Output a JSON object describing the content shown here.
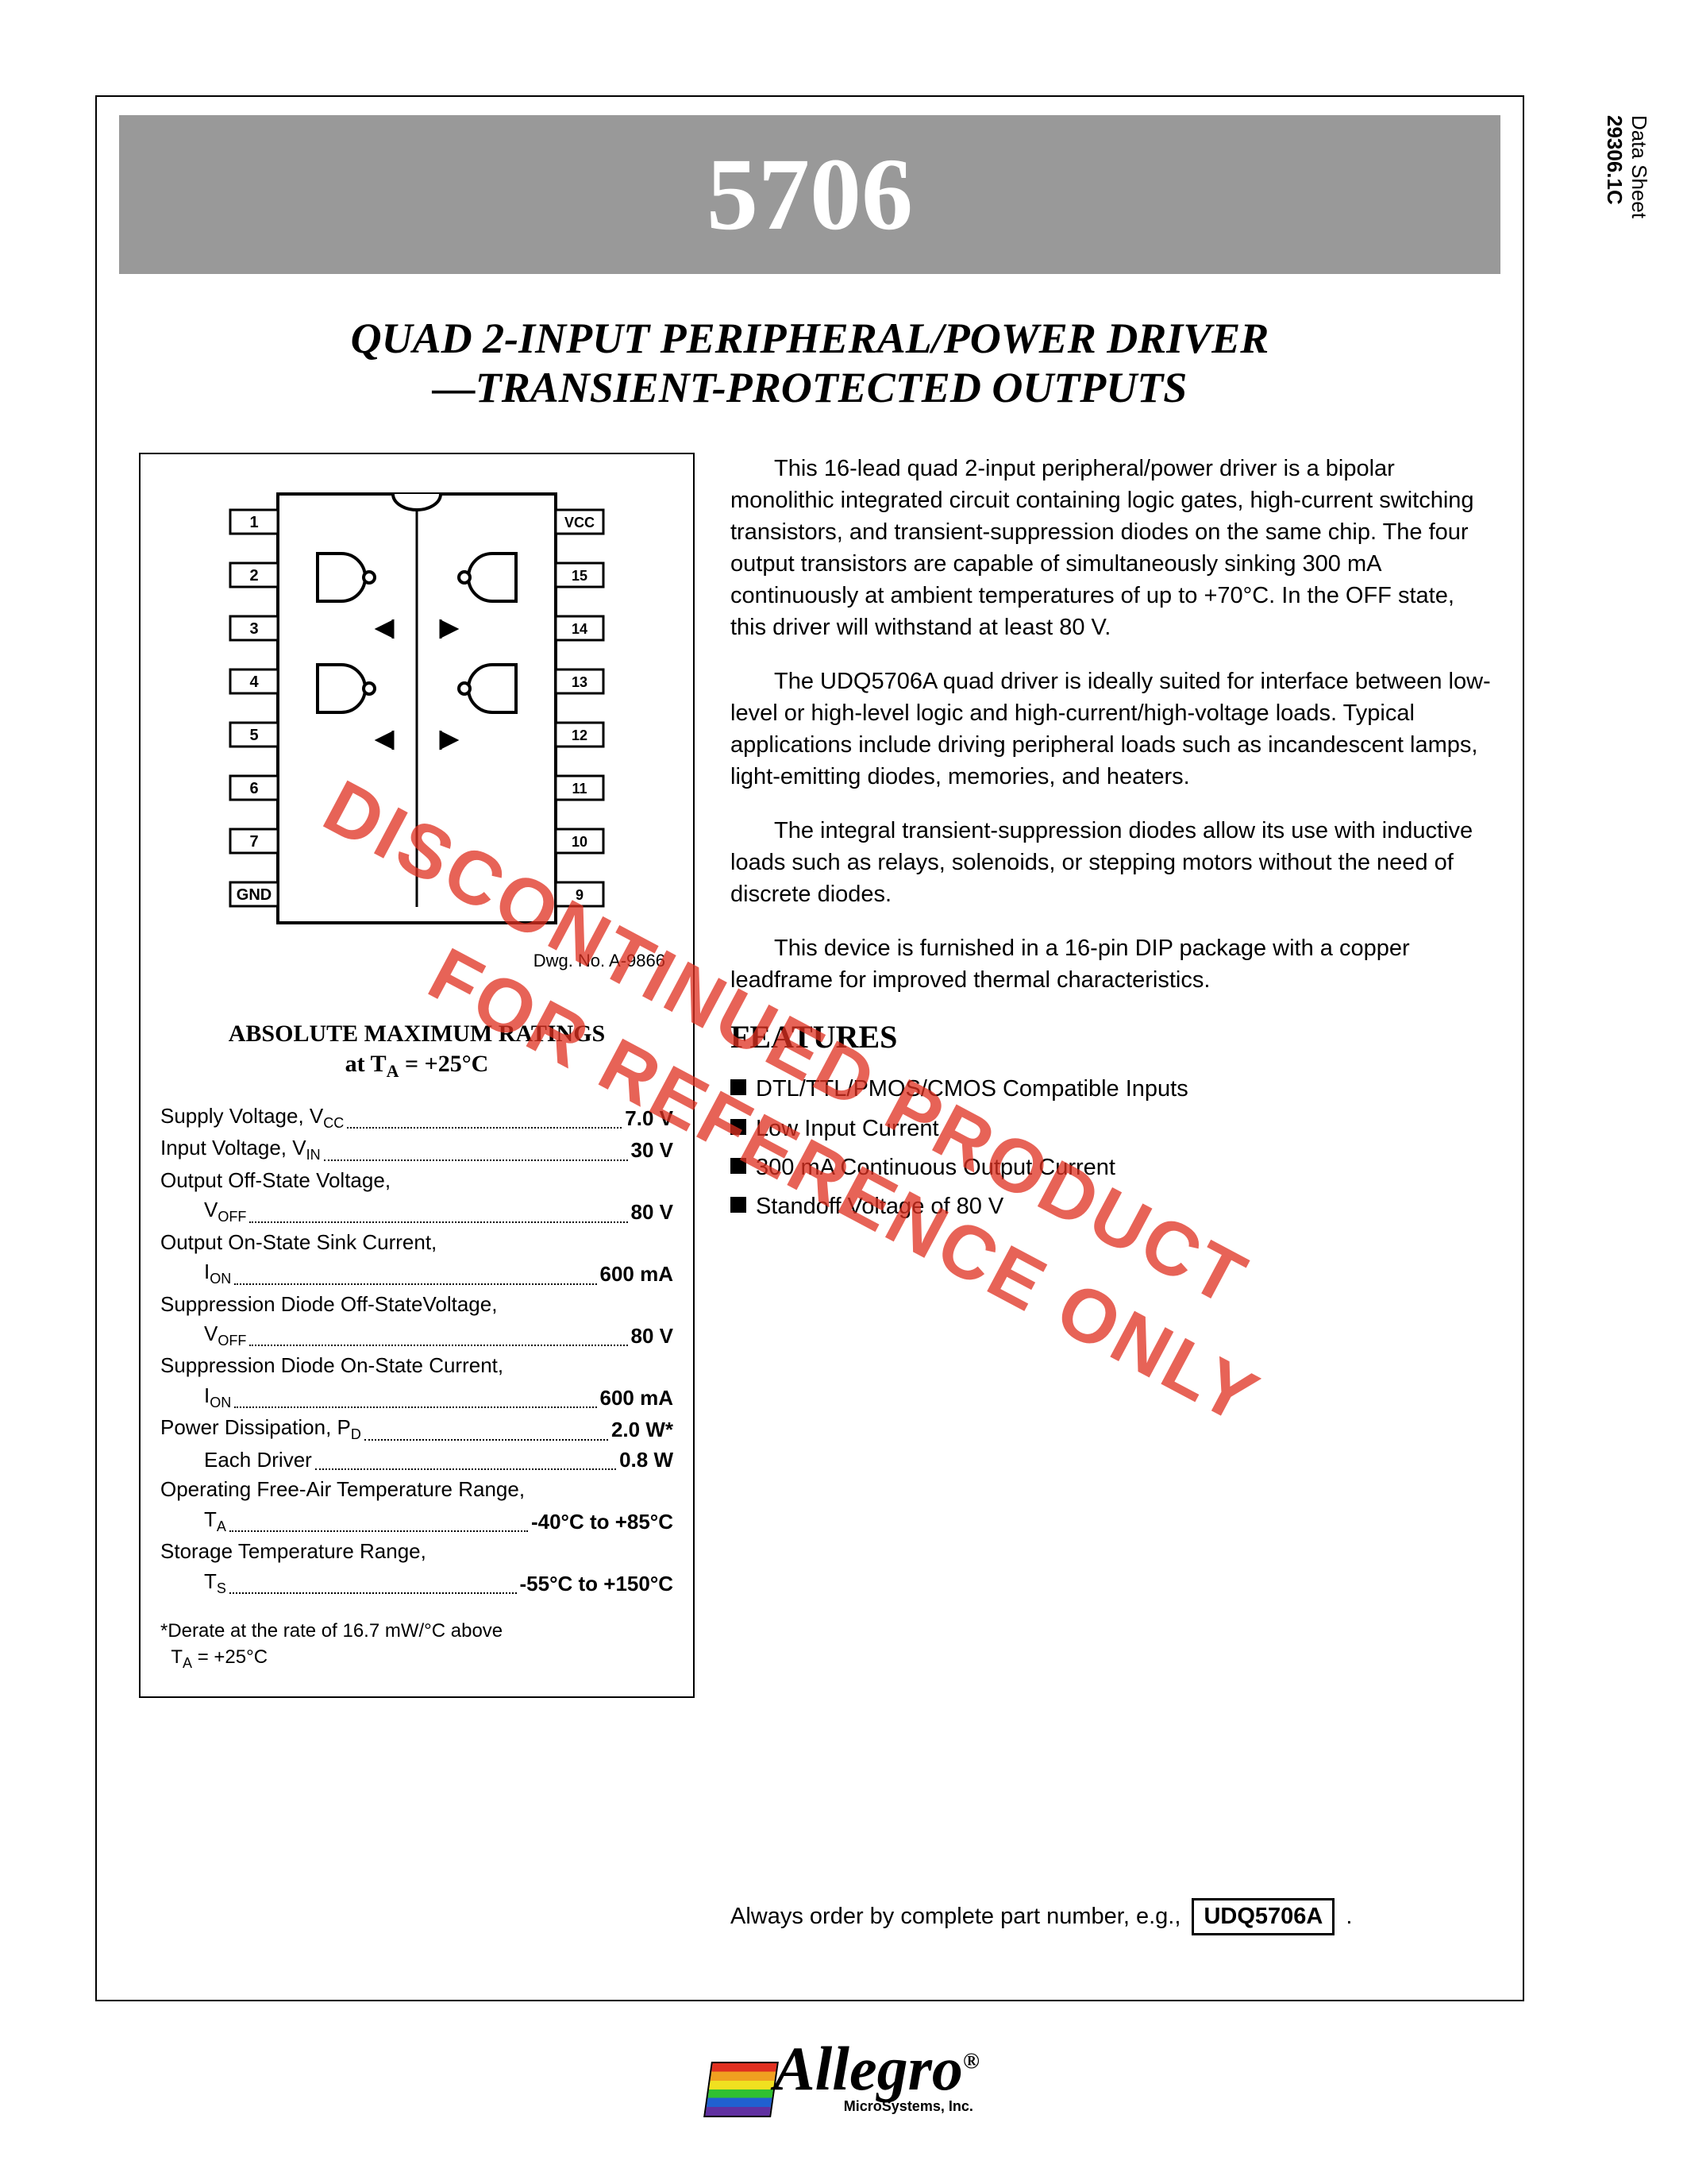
{
  "sidebar": {
    "label1": "Data Sheet",
    "label2": "29306.1C"
  },
  "banner": {
    "title": "5706",
    "bg_color": "#999999",
    "text_color": "#ffffff"
  },
  "subtitle": {
    "line1": "QUAD 2-INPUT PERIPHERAL/POWER DRIVER",
    "line2": "—TRANSIENT-PROTECTED OUTPUTS"
  },
  "diagram": {
    "dwg_no": "Dwg. No. A-9866",
    "pins_left": [
      "1",
      "2",
      "3",
      "4",
      "5",
      "6",
      "7",
      "GND"
    ],
    "pins_right": [
      "VCC",
      "15",
      "14",
      "13",
      "12",
      "11",
      "10",
      "9"
    ]
  },
  "ratings_header": {
    "title": "ABSOLUTE MAXIMUM RATINGS",
    "cond": "at T",
    "cond_sub": "A",
    "cond2": " = +25°C"
  },
  "ratings": [
    {
      "label": "Supply Voltage, V",
      "sub": "CC",
      "value": "7.0 V",
      "indent": false
    },
    {
      "label": "Input Voltage, V",
      "sub": "IN",
      "value": "30 V",
      "indent": false
    },
    {
      "label": "Output Off-State Voltage,",
      "sub": "",
      "value": "",
      "indent": false
    },
    {
      "label": "V",
      "sub": "OFF",
      "value": "80 V",
      "indent": true
    },
    {
      "label": "Output On-State Sink Current,",
      "sub": "",
      "value": "",
      "indent": false
    },
    {
      "label": "I",
      "sub": "ON",
      "value": "600 mA",
      "indent": true
    },
    {
      "label": "Suppression Diode Off-StateVoltage,",
      "sub": "",
      "value": "",
      "indent": false
    },
    {
      "label": "V",
      "sub": "OFF",
      "value": "80 V",
      "indent": true
    },
    {
      "label": "Suppression Diode On-State Current,",
      "sub": "",
      "value": "",
      "indent": false
    },
    {
      "label": "I",
      "sub": "ON",
      "value": "600 mA",
      "indent": true
    },
    {
      "label": "Power Dissipation, P",
      "sub": "D",
      "value": "2.0 W*",
      "indent": false
    },
    {
      "label": "Each Driver",
      "sub": "",
      "value": "0.8 W",
      "indent": true
    },
    {
      "label": "Operating Free-Air Temperature Range,",
      "sub": "",
      "value": "",
      "indent": false
    },
    {
      "label": "T",
      "sub": "A",
      "value": "-40°C to +85°C",
      "indent": true
    },
    {
      "label": "Storage Temperature Range,",
      "sub": "",
      "value": "",
      "indent": false
    },
    {
      "label": "T",
      "sub": "S",
      "value": "-55°C to +150°C",
      "indent": true
    }
  ],
  "derate": {
    "l1": "*Derate at the rate of 16.7 mW/°C above",
    "l2": "T",
    "l2sub": "A",
    "l3": " = +25°C"
  },
  "paragraphs": [
    "This 16-lead quad 2-input peripheral/power driver is a bipolar monolithic integrated circuit containing logic gates, high-current switching transistors, and transient-suppression diodes on the same chip. The four output transistors are capable of simultaneously sinking 300 mA continuously at ambient temperatures of up to +70°C. In the OFF state, this driver will withstand at least 80 V.",
    "The UDQ5706A quad driver is ideally suited for interface between low-level or high-level logic and high-current/high-voltage loads. Typical applications include driving peripheral loads such as incandescent lamps, light-emitting diodes, memories, and heaters.",
    "The integral transient-suppression diodes allow its use with inductive loads such as relays, solenoids, or stepping motors without the need of discrete diodes.",
    "This device is furnished in a 16-pin DIP package with a copper leadframe for improved thermal characteristics."
  ],
  "features": {
    "heading": "FEATURES",
    "items": [
      "DTL/TTL/PMOS/CMOS Compatible Inputs",
      "Low Input Current",
      "300 mA Continuous Output Current",
      "Standoff Voltage of 80 V"
    ]
  },
  "order": {
    "prefix": "Always order by complete part number, e.g.,",
    "part": "UDQ5706A",
    "suffix": "."
  },
  "watermarks": {
    "w1": "DISCONTINUED PRODUCT",
    "w2": "FOR REFERENCE ONLY"
  },
  "logo": {
    "name": "Allegro",
    "reg": "®",
    "sub": "MicroSystems, Inc."
  }
}
